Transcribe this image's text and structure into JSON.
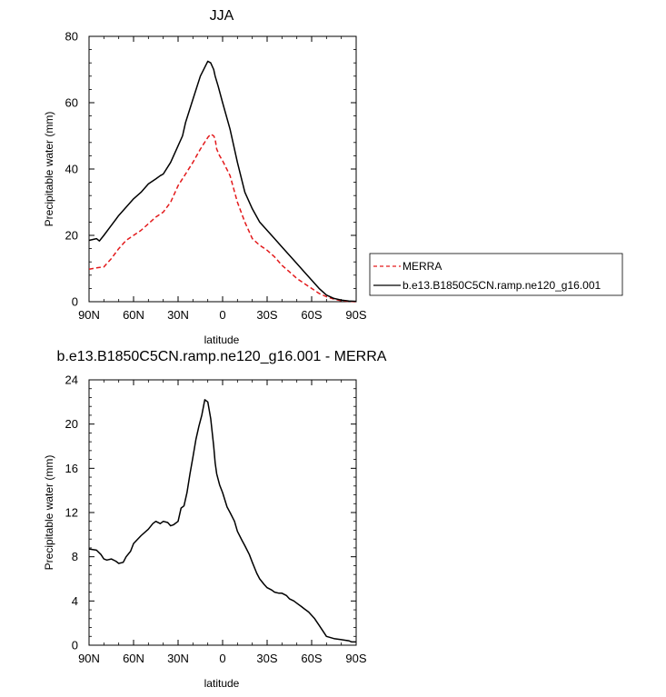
{
  "chart_data": [
    {
      "type": "line",
      "title": "JJA",
      "xlabel": "latitude",
      "ylabel": "Precipitable water (mm)",
      "xlim": [
        90,
        -90
      ],
      "ylim": [
        0,
        80
      ],
      "x_ticks": [
        90,
        60,
        30,
        0,
        -30,
        -60,
        -90
      ],
      "x_tick_labels": [
        "90N",
        "60N",
        "30N",
        "0",
        "30S",
        "60S",
        "90S"
      ],
      "y_ticks": [
        0,
        20,
        40,
        60,
        80
      ],
      "y_tick_labels": [
        "0",
        "20",
        "40",
        "60",
        "80"
      ],
      "grid": false,
      "legend_position": "right",
      "series": [
        {
          "name": "MERRA",
          "color": "#e31a1c",
          "dash": "dashed",
          "x": [
            90,
            85,
            80,
            75,
            70,
            65,
            60,
            55,
            50,
            45,
            40,
            35,
            30,
            25,
            20,
            15,
            10,
            8,
            6,
            5,
            4,
            2,
            0,
            -5,
            -10,
            -15,
            -20,
            -25,
            -30,
            -35,
            -40,
            -45,
            -50,
            -55,
            -60,
            -65,
            -70,
            -75,
            -80,
            -85,
            -90
          ],
          "y": [
            9.8,
            10.2,
            10.5,
            13,
            16,
            18.5,
            20,
            21.5,
            23.5,
            25.5,
            27,
            30,
            35,
            38.5,
            42,
            46,
            49.5,
            50.5,
            50,
            49,
            46,
            44,
            42.5,
            38,
            30,
            24,
            19,
            17,
            15.5,
            13.5,
            11,
            9,
            7,
            5.5,
            4,
            2.5,
            1.5,
            0.8,
            0.3,
            0.1,
            0.0
          ]
        },
        {
          "name": "b.e13.B1850C5CN.ramp.ne120_g16.001",
          "color": "#000000",
          "dash": "solid",
          "x": [
            90,
            85,
            83,
            80,
            75,
            70,
            65,
            60,
            55,
            50,
            45,
            42,
            40,
            35,
            30,
            27,
            25,
            20,
            15,
            10,
            8,
            6,
            5,
            3,
            0,
            -5,
            -10,
            -15,
            -20,
            -25,
            -30,
            -35,
            -40,
            -45,
            -50,
            -55,
            -60,
            -65,
            -70,
            -75,
            -80,
            -85,
            -90
          ],
          "y": [
            18.5,
            19,
            18.3,
            20,
            23,
            26,
            28.5,
            31,
            33,
            35.5,
            37,
            38,
            38.5,
            42,
            47,
            50,
            54,
            61,
            68,
            72.5,
            72,
            70,
            68,
            65,
            60,
            52,
            42,
            33,
            28,
            24,
            21.5,
            19,
            16.5,
            14,
            11.5,
            9,
            6.5,
            4,
            2,
            1,
            0.5,
            0.2,
            0.1
          ]
        }
      ]
    },
    {
      "type": "line",
      "title": "b.e13.B1850C5CN.ramp.ne120_g16.001 - MERRA",
      "xlabel": "latitude",
      "ylabel": "Precipitable water (mm)",
      "xlim": [
        90,
        -90
      ],
      "ylim": [
        0,
        24
      ],
      "x_ticks": [
        90,
        60,
        30,
        0,
        -30,
        -60,
        -90
      ],
      "x_tick_labels": [
        "90N",
        "60N",
        "30N",
        "0",
        "30S",
        "60S",
        "90S"
      ],
      "y_ticks": [
        0,
        4,
        8,
        12,
        16,
        20,
        24
      ],
      "y_tick_labels": [
        "0",
        "4",
        "8",
        "12",
        "16",
        "20",
        "24"
      ],
      "grid": false,
      "series": [
        {
          "color": "#000000",
          "dash": "solid",
          "x": [
            90,
            85,
            82,
            80,
            78,
            75,
            72,
            70,
            67,
            65,
            62,
            60,
            55,
            50,
            47,
            45,
            42,
            40,
            37,
            35,
            33,
            30,
            28,
            26,
            24,
            22,
            20,
            18,
            16,
            14,
            12,
            10,
            8,
            6,
            5,
            4,
            2,
            0,
            -3,
            -5,
            -8,
            -10,
            -13,
            -15,
            -18,
            -20,
            -23,
            -25,
            -28,
            -30,
            -33,
            -35,
            -38,
            -40,
            -43,
            -45,
            -48,
            -50,
            -53,
            -55,
            -58,
            -60,
            -62,
            -65,
            -68,
            -70,
            -75,
            -80,
            -85,
            -87,
            -90
          ],
          "y": [
            8.7,
            8.6,
            8.2,
            7.8,
            7.7,
            7.8,
            7.6,
            7.4,
            7.5,
            8,
            8.5,
            9.2,
            9.9,
            10.5,
            11,
            11.2,
            11.0,
            11.2,
            11.1,
            10.8,
            10.9,
            11.2,
            12.4,
            12.6,
            13.8,
            15.5,
            17.0,
            18.6,
            19.8,
            20.8,
            22.2,
            22.0,
            20.5,
            18.0,
            16.5,
            15.5,
            14.5,
            13.8,
            12.5,
            12.0,
            11.2,
            10.3,
            9.5,
            9.0,
            8.2,
            7.5,
            6.5,
            6.0,
            5.5,
            5.2,
            5.0,
            4.8,
            4.7,
            4.7,
            4.5,
            4.2,
            4.0,
            3.8,
            3.5,
            3.3,
            3.0,
            2.7,
            2.4,
            1.8,
            1.2,
            0.8,
            0.6,
            0.5,
            0.4,
            0.3,
            0.3
          ]
        }
      ]
    }
  ]
}
